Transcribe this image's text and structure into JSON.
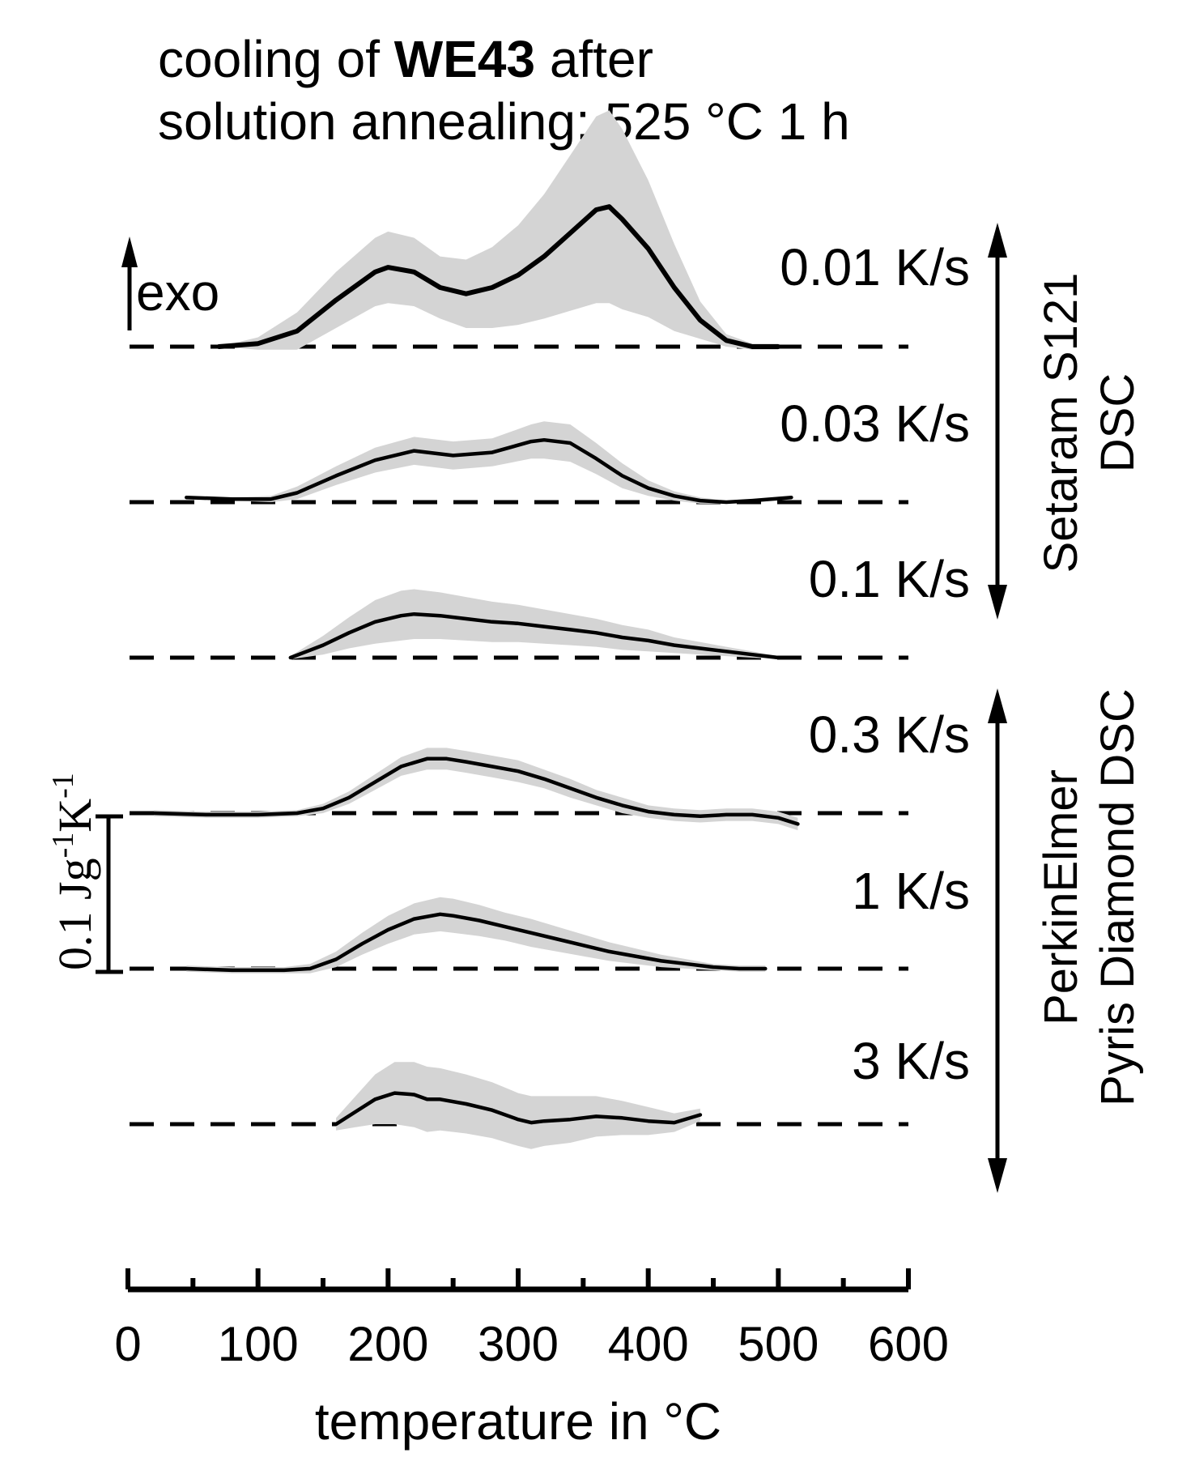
{
  "chart_data": {
    "type": "line",
    "title_line1_prefix": "cooling of ",
    "title_line1_bold": "WE43",
    "title_line1_suffix": " after",
    "title_line2": "solution annealing: 525 °C 1 h",
    "xlabel": "temperature in °C",
    "xlim": [
      0,
      600
    ],
    "xticks": [
      0,
      100,
      200,
      300,
      400,
      500,
      600
    ],
    "exo_label": "exo",
    "scale_bar": {
      "value": 0.1,
      "label_main": "0.1 Jg",
      "sup1": "-1",
      "label_mid": "K",
      "sup2": "-1"
    },
    "instruments": [
      {
        "name_line1": "Setaram S121",
        "name_line2": "DSC",
        "series": [
          "0.01 K/s",
          "0.03 K/s",
          "0.1 K/s"
        ]
      },
      {
        "name_line1": "PerkinElmer",
        "name_line2": "Pyris Diamond DSC",
        "series": [
          "0.3 K/s",
          "1 K/s",
          "3 K/s"
        ]
      }
    ],
    "series": [
      {
        "name": "0.01 K/s",
        "x": [
          70,
          100,
          130,
          160,
          190,
          200,
          220,
          240,
          260,
          280,
          300,
          320,
          340,
          360,
          370,
          380,
          400,
          420,
          440,
          460,
          480,
          500
        ],
        "y": [
          0.0,
          0.002,
          0.01,
          0.03,
          0.048,
          0.051,
          0.048,
          0.038,
          0.034,
          0.038,
          0.046,
          0.058,
          0.073,
          0.088,
          0.09,
          0.082,
          0.063,
          0.038,
          0.017,
          0.004,
          0.0,
          0.0
        ],
        "band": [
          0.0,
          0.004,
          0.012,
          0.018,
          0.022,
          0.023,
          0.022,
          0.02,
          0.022,
          0.026,
          0.032,
          0.04,
          0.05,
          0.06,
          0.062,
          0.058,
          0.044,
          0.028,
          0.012,
          0.004,
          0.002,
          0.002
        ]
      },
      {
        "name": "0.03 K/s",
        "x": [
          45,
          80,
          110,
          130,
          160,
          190,
          220,
          250,
          280,
          310,
          320,
          340,
          360,
          380,
          400,
          420,
          440,
          460,
          480,
          510
        ],
        "y": [
          0.003,
          0.002,
          0.002,
          0.006,
          0.017,
          0.027,
          0.033,
          0.03,
          0.032,
          0.039,
          0.04,
          0.038,
          0.028,
          0.017,
          0.009,
          0.004,
          0.001,
          0.0,
          0.001,
          0.003
        ],
        "band": [
          0.001,
          0.001,
          0.002,
          0.004,
          0.006,
          0.008,
          0.009,
          0.009,
          0.009,
          0.011,
          0.012,
          0.012,
          0.01,
          0.008,
          0.005,
          0.003,
          0.002,
          0.001,
          0.001,
          0.001
        ]
      },
      {
        "name": "0.1 K/s",
        "x": [
          125,
          150,
          170,
          190,
          210,
          220,
          240,
          260,
          280,
          300,
          320,
          340,
          360,
          380,
          400,
          420,
          440,
          460,
          480,
          500
        ],
        "y": [
          0.0,
          0.008,
          0.016,
          0.023,
          0.027,
          0.028,
          0.027,
          0.025,
          0.023,
          0.022,
          0.02,
          0.018,
          0.016,
          0.013,
          0.011,
          0.008,
          0.006,
          0.004,
          0.002,
          0.0
        ],
        "band": [
          0.001,
          0.006,
          0.01,
          0.014,
          0.016,
          0.016,
          0.015,
          0.014,
          0.013,
          0.012,
          0.011,
          0.01,
          0.009,
          0.008,
          0.007,
          0.005,
          0.004,
          0.003,
          0.002,
          0.001
        ]
      },
      {
        "name": "0.3 K/s",
        "x": [
          20,
          60,
          100,
          130,
          150,
          170,
          190,
          210,
          230,
          245,
          260,
          280,
          300,
          320,
          340,
          360,
          380,
          400,
          420,
          440,
          460,
          480,
          500,
          515
        ],
        "y": [
          0.0,
          -0.001,
          -0.001,
          0.0,
          0.003,
          0.01,
          0.02,
          0.03,
          0.035,
          0.035,
          0.033,
          0.03,
          0.027,
          0.022,
          0.016,
          0.01,
          0.005,
          0.001,
          -0.001,
          -0.002,
          -0.001,
          -0.001,
          -0.003,
          -0.007
        ],
        "band": [
          0.002,
          0.002,
          0.002,
          0.002,
          0.003,
          0.004,
          0.005,
          0.006,
          0.007,
          0.007,
          0.007,
          0.007,
          0.007,
          0.006,
          0.006,
          0.005,
          0.005,
          0.004,
          0.004,
          0.004,
          0.004,
          0.004,
          0.004,
          0.004
        ]
      },
      {
        "name": "1 K/s",
        "x": [
          45,
          80,
          120,
          140,
          160,
          180,
          200,
          220,
          240,
          250,
          270,
          290,
          310,
          330,
          350,
          370,
          390,
          410,
          430,
          450,
          470,
          490
        ],
        "y": [
          0.0,
          -0.001,
          -0.001,
          0.0,
          0.006,
          0.016,
          0.025,
          0.032,
          0.035,
          0.034,
          0.031,
          0.027,
          0.023,
          0.019,
          0.015,
          0.011,
          0.008,
          0.005,
          0.003,
          0.001,
          0.0,
          0.0
        ],
        "band": [
          0.002,
          0.002,
          0.002,
          0.003,
          0.005,
          0.007,
          0.009,
          0.01,
          0.011,
          0.011,
          0.01,
          0.009,
          0.009,
          0.008,
          0.007,
          0.006,
          0.005,
          0.004,
          0.003,
          0.002,
          0.002,
          0.002
        ]
      },
      {
        "name": "3 K/s",
        "x": [
          160,
          175,
          190,
          205,
          220,
          230,
          240,
          260,
          280,
          300,
          310,
          320,
          340,
          360,
          380,
          400,
          420,
          440
        ],
        "y": [
          0.0,
          0.008,
          0.016,
          0.02,
          0.019,
          0.016,
          0.016,
          0.013,
          0.009,
          0.003,
          0.001,
          0.002,
          0.003,
          0.005,
          0.004,
          0.002,
          0.001,
          0.006
        ],
        "band": [
          0.004,
          0.01,
          0.016,
          0.02,
          0.021,
          0.021,
          0.02,
          0.019,
          0.018,
          0.017,
          0.017,
          0.016,
          0.015,
          0.013,
          0.011,
          0.009,
          0.006,
          0.004
        ]
      }
    ]
  }
}
